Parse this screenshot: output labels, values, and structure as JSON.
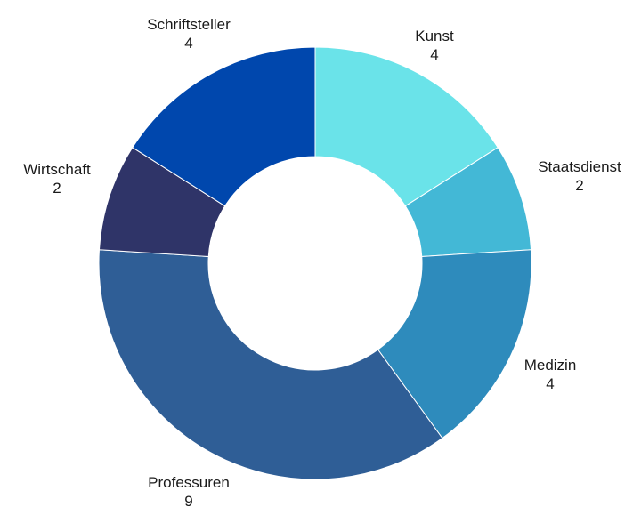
{
  "chart_data": {
    "type": "pie",
    "variant": "donut",
    "title": "",
    "start_angle_deg": 0,
    "direction": "clockwise",
    "slices": [
      {
        "label": "Kunst",
        "value": 4,
        "color": "#6ae3e9"
      },
      {
        "label": "Staatsdienst",
        "value": 2,
        "color": "#43b8d6"
      },
      {
        "label": "Medizin",
        "value": 4,
        "color": "#2e8bbc"
      },
      {
        "label": "Professuren",
        "value": 9,
        "color": "#2f5e96"
      },
      {
        "label": "Wirtschaft",
        "value": 2,
        "color": "#2f3468"
      },
      {
        "label": "Schriftsteller",
        "value": 4,
        "color": "#0047ad"
      }
    ]
  }
}
